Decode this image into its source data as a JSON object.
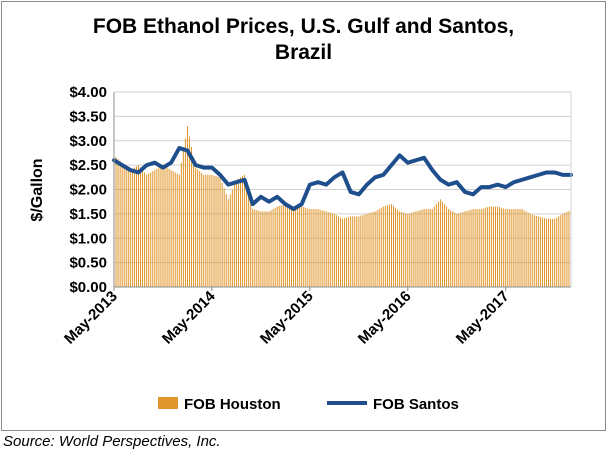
{
  "title_line1": "FOB Ethanol Prices, U.S. Gulf and Santos,",
  "title_line2": "Brazil",
  "source": "Source: World Perspectives, Inc.",
  "chart_data": {
    "type": "bar+line",
    "title": "FOB Ethanol Prices, U.S. Gulf and Santos, Brazil",
    "xlabel": "",
    "ylabel": "$/Gallon",
    "ylim": [
      0,
      4
    ],
    "y_ticks": [
      0,
      0.5,
      1,
      1.5,
      2,
      2.5,
      3,
      3.5,
      4
    ],
    "y_tick_labels": [
      "$0.00",
      "$0.50",
      "$1.00",
      "$1.50",
      "$2.00",
      "$2.50",
      "$3.00",
      "$3.50",
      "$4.00"
    ],
    "x_tick_labels": [
      "May-2013",
      "May-2014",
      "May-2015",
      "May-2016",
      "May-2017"
    ],
    "x_range_months": [
      0,
      56
    ],
    "grid": "horizontal",
    "legend_position": "bottom",
    "colors": {
      "houston": "#E0962A",
      "santos": "#1F4E8C",
      "grid": "#d0d0d0",
      "axis": "#8c8c8c"
    },
    "series": [
      {
        "name": "FOB Houston",
        "type": "bar",
        "color": "#E0962A",
        "months": [
          0,
          1,
          2,
          3,
          4,
          5,
          6,
          7,
          8,
          9,
          10,
          11,
          12,
          13,
          14,
          15,
          16,
          17,
          18,
          19,
          20,
          21,
          22,
          23,
          24,
          25,
          26,
          27,
          28,
          29,
          30,
          31,
          32,
          33,
          34,
          35,
          36,
          37,
          38,
          39,
          40,
          41,
          42,
          43,
          44,
          45,
          46,
          47,
          48,
          49,
          50,
          51,
          52,
          53,
          54,
          55,
          56
        ],
        "values": [
          2.7,
          2.55,
          2.4,
          2.5,
          2.3,
          2.4,
          2.5,
          2.4,
          2.3,
          3.3,
          2.45,
          2.3,
          2.3,
          2.25,
          1.8,
          2.2,
          2.3,
          1.6,
          1.55,
          1.55,
          1.65,
          1.7,
          1.6,
          1.65,
          1.6,
          1.6,
          1.55,
          1.5,
          1.4,
          1.45,
          1.45,
          1.5,
          1.55,
          1.65,
          1.7,
          1.55,
          1.5,
          1.55,
          1.6,
          1.6,
          1.8,
          1.6,
          1.5,
          1.55,
          1.6,
          1.6,
          1.65,
          1.65,
          1.6,
          1.6,
          1.6,
          1.5,
          1.45,
          1.4,
          1.4,
          1.5,
          1.58
        ]
      },
      {
        "name": "FOB Santos",
        "type": "line",
        "color": "#1F4E8C",
        "months": [
          0,
          1,
          2,
          3,
          4,
          5,
          6,
          7,
          8,
          9,
          10,
          11,
          12,
          13,
          14,
          15,
          16,
          17,
          18,
          19,
          20,
          21,
          22,
          23,
          24,
          25,
          26,
          27,
          28,
          29,
          30,
          31,
          32,
          33,
          34,
          35,
          36,
          37,
          38,
          39,
          40,
          41,
          42,
          43,
          44,
          45,
          46,
          47,
          48,
          49,
          50,
          51,
          52,
          53,
          54,
          55,
          56
        ],
        "values": [
          2.6,
          2.5,
          2.4,
          2.35,
          2.5,
          2.55,
          2.45,
          2.55,
          2.85,
          2.8,
          2.5,
          2.45,
          2.45,
          2.3,
          2.1,
          2.15,
          2.2,
          1.7,
          1.85,
          1.75,
          1.85,
          1.7,
          1.6,
          1.7,
          2.1,
          2.15,
          2.1,
          2.25,
          2.35,
          1.95,
          1.9,
          2.1,
          2.25,
          2.3,
          2.5,
          2.7,
          2.55,
          2.6,
          2.65,
          2.4,
          2.2,
          2.1,
          2.15,
          1.95,
          1.9,
          2.05,
          2.05,
          2.1,
          2.05,
          2.15,
          2.2,
          2.25,
          2.3,
          2.35,
          2.35,
          2.3,
          2.3
        ]
      }
    ]
  }
}
